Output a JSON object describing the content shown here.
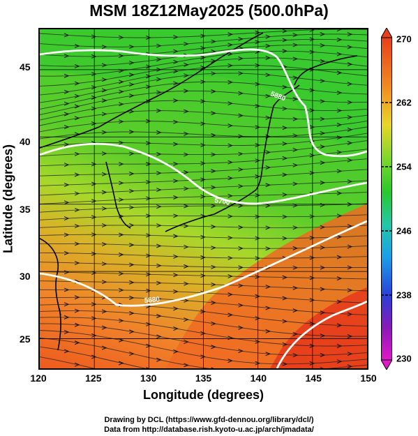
{
  "title": "MSM 18Z12May2025 (500.0hPa)",
  "xlabel": "Longitude (degrees)",
  "ylabel": "Latitude  (degrees)",
  "x_ticks": [
    "120",
    "125",
    "130",
    "135",
    "140",
    "145",
    "150"
  ],
  "y_ticks": [
    "25",
    "30",
    "35",
    "40",
    "45"
  ],
  "colorbar_ticks": [
    "270",
    "262",
    "254",
    "246",
    "238",
    "230"
  ],
  "contour_labels": [
    "5880",
    "5700",
    "5880"
  ],
  "credit_line1": "Drawing by DCL (https://www.gfd-dennou.org/library/dcl/)",
  "credit_line2": "Data from http://database.rish.kyoto-u.ac.jp/arch/jmadata/",
  "colors": {
    "warm_red": "#e8401a",
    "orange": "#f07a22",
    "yellow_green": "#b8dc2a",
    "green": "#44cc2a",
    "contour": "#ffffff"
  },
  "chart_data": {
    "type": "heatmap",
    "xlim": [
      120,
      150
    ],
    "ylim": [
      22.8,
      48
    ],
    "colorbar_range": [
      230,
      270
    ]
  }
}
